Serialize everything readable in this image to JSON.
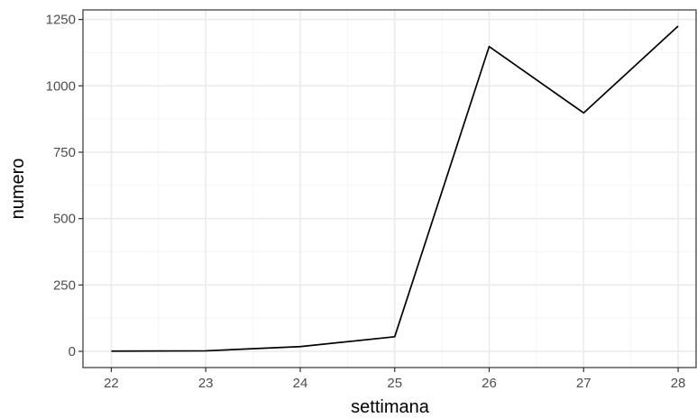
{
  "chart_data": {
    "type": "line",
    "xlabel": "settimana",
    "ylabel": "numero",
    "x": [
      22,
      23,
      24,
      25,
      26,
      27,
      28
    ],
    "series": [
      {
        "values": [
          1,
          2,
          18,
          55,
          1148,
          898,
          1225
        ]
      }
    ],
    "xlim": [
      21.7,
      28.2
    ],
    "ylim": [
      -61,
      1286
    ],
    "xticks": [
      22,
      23,
      24,
      25,
      26,
      27,
      28
    ],
    "yticks": [
      0,
      250,
      500,
      750,
      1000,
      1250
    ],
    "xtick_labels": [
      "22",
      "23",
      "24",
      "25",
      "26",
      "27",
      "28"
    ],
    "ytick_labels": [
      "0",
      "250",
      "500",
      "750",
      "1000",
      "1250"
    ],
    "grid": true,
    "theme": "bw",
    "colors": {
      "line": "#000000",
      "grid_major": "#ebebeb",
      "grid_minor": "#f5f5f5",
      "panel_border": "#333333",
      "tick_text": "#4d4d4d"
    }
  }
}
